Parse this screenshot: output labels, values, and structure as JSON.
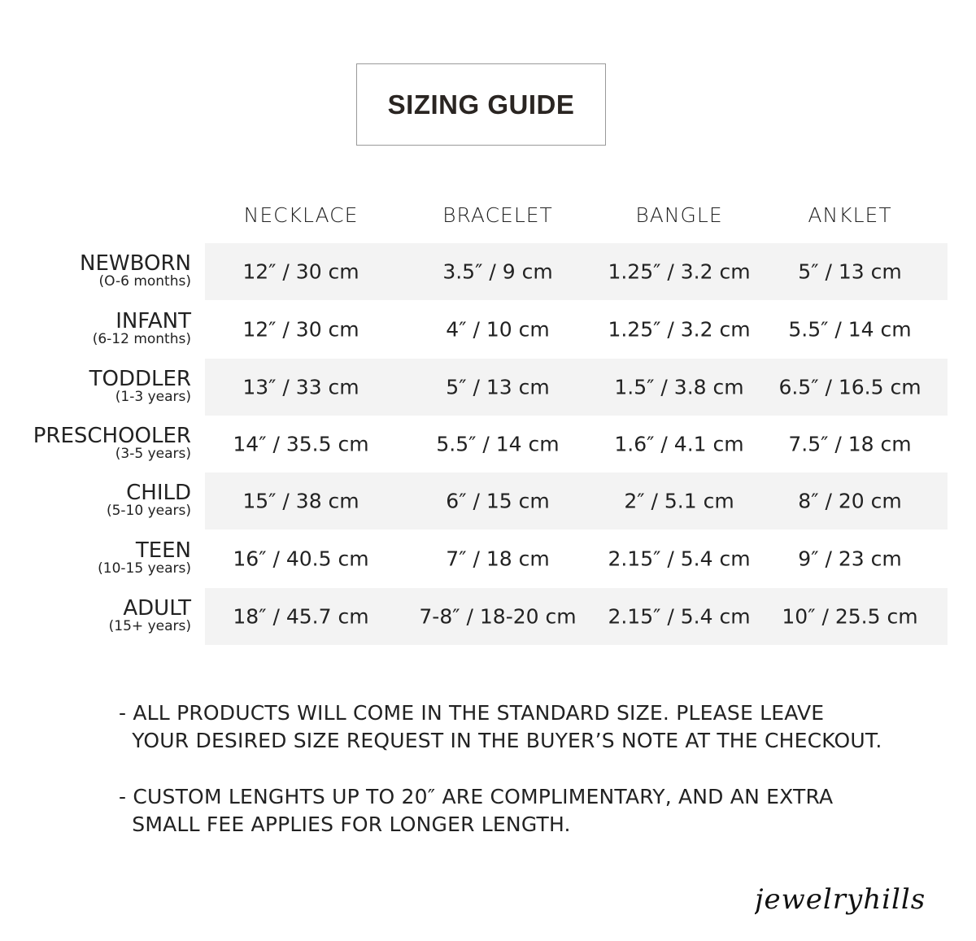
{
  "title": "SIZING GUIDE",
  "columns": [
    "NECKLACE",
    "BRACELET",
    "BANGLE",
    "ANKLET"
  ],
  "rows": [
    {
      "label": "NEWBORN",
      "age": "(O-6 months)",
      "values": [
        "12″ / 30 cm",
        "3.5″ / 9 cm",
        "1.25″ / 3.2 cm",
        "5″ / 13 cm"
      ]
    },
    {
      "label": "INFANT",
      "age": "(6-12 months)",
      "values": [
        "12″ / 30 cm",
        "4″ / 10 cm",
        "1.25″ / 3.2 cm",
        "5.5″ / 14 cm"
      ]
    },
    {
      "label": "TODDLER",
      "age": "(1-3 years)",
      "values": [
        "13″ / 33 cm",
        "5″ / 13 cm",
        "1.5″ / 3.8 cm",
        "6.5″ / 16.5 cm"
      ]
    },
    {
      "label": "PRESCHOOLER",
      "age": "(3-5 years)",
      "values": [
        "14″ / 35.5 cm",
        "5.5″ / 14 cm",
        "1.6″ / 4.1 cm",
        "7.5″ / 18 cm"
      ]
    },
    {
      "label": "CHILD",
      "age": "(5-10 years)",
      "values": [
        "15″ / 38 cm",
        "6″ / 15 cm",
        "2″ / 5.1 cm",
        "8″ / 20 cm"
      ]
    },
    {
      "label": "TEEN",
      "age": "(10-15 years)",
      "values": [
        "16″ / 40.5 cm",
        "7″ / 18 cm",
        "2.15″ / 5.4 cm",
        "9″ / 23 cm"
      ]
    },
    {
      "label": "ADULT",
      "age": "(15+ years)",
      "values": [
        "18″ / 45.7 cm",
        "7-8″ / 18-20 cm",
        "2.15″ / 5.4 cm",
        "10″ / 25.5 cm"
      ]
    }
  ],
  "notes": [
    "- ALL PRODUCTS WILL COME IN THE STANDARD SIZE. PLEASE LEAVE\n  YOUR DESIRED SIZE REQUEST IN THE BUYER’S NOTE AT THE CHECKOUT.",
    "- CUSTOM LENGHTS UP TO 20″ ARE COMPLIMENTARY, AND AN EXTRA\n  SMALL FEE APPLIES FOR LONGER LENGTH."
  ],
  "brand": "jewelryhills",
  "colors": {
    "text": "#222222",
    "row_shade": "#f3f3f3",
    "title_border": "#9a9a9a"
  }
}
